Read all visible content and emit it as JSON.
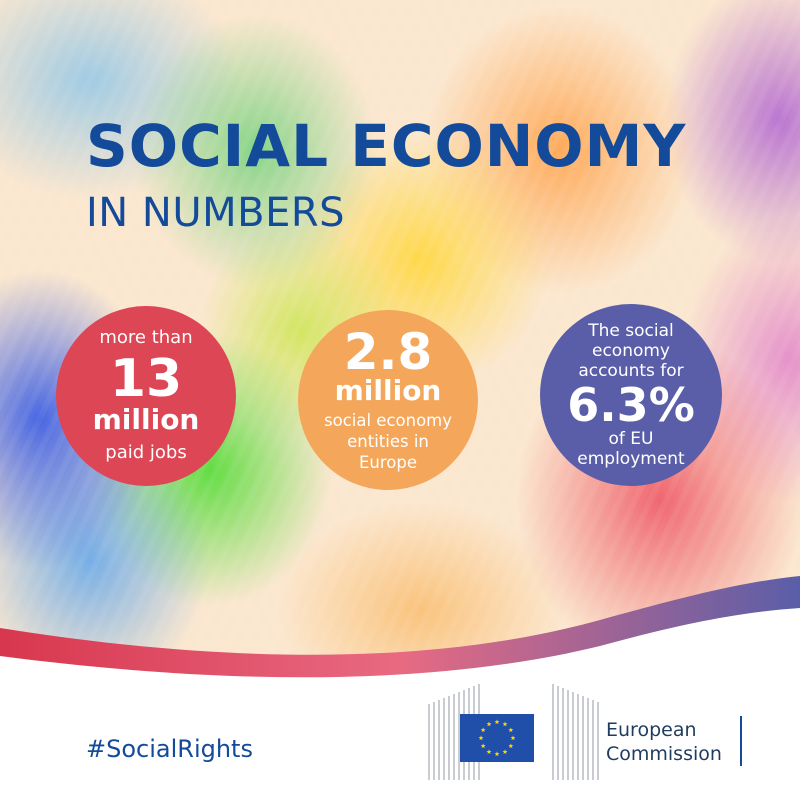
{
  "colors": {
    "title_blue": "#134a9a",
    "red_circle": "#dd4654",
    "orange_circle": "#f4a75a",
    "purple_circle": "#5a5ea8",
    "eu_flag_blue": "#1f4fa8",
    "eu_star_yellow": "#ffd700"
  },
  "header": {
    "title": "SOCIAL ECONOMY",
    "subtitle": "IN NUMBERS"
  },
  "stats": [
    {
      "color": "red",
      "prefix": "more than",
      "number": "13",
      "unit": "million",
      "suffix": "paid jobs"
    },
    {
      "color": "orange",
      "number": "2.8",
      "unit": "million",
      "suffix_lines": [
        "social economy",
        "entities in",
        "Europe"
      ]
    },
    {
      "color": "purple",
      "prefix_lines": [
        "The social",
        "economy",
        "accounts for"
      ],
      "number": "6.3%",
      "suffix_lines": [
        "of EU",
        "employment"
      ]
    }
  ],
  "footer": {
    "hashtag": "#SocialRights",
    "logo": {
      "icon": "eu-flag-icon",
      "line1": "European",
      "line2": "Commission"
    }
  }
}
